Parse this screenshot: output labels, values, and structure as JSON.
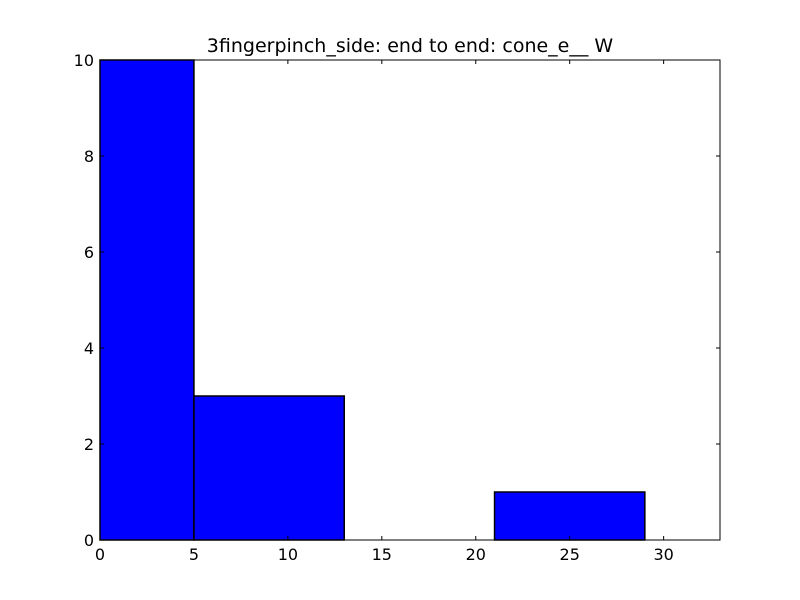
{
  "chart_data": {
    "type": "bar",
    "title": "3fingerpinch_side: end to end: cone_e__ W",
    "xlabel": "",
    "ylabel": "",
    "xlim": [
      0,
      33
    ],
    "ylim": [
      0,
      10
    ],
    "x_ticks": [
      0,
      5,
      10,
      15,
      20,
      25,
      30
    ],
    "y_ticks": [
      0,
      2,
      4,
      6,
      8,
      10
    ],
    "bins": [
      {
        "x0": 0,
        "x1": 5,
        "value": 10
      },
      {
        "x0": 5,
        "x1": 13,
        "value": 3
      },
      {
        "x0": 21,
        "x1": 29,
        "value": 1
      }
    ],
    "bar_color": "#0000ff",
    "edge_color": "#000000",
    "grid": false
  }
}
